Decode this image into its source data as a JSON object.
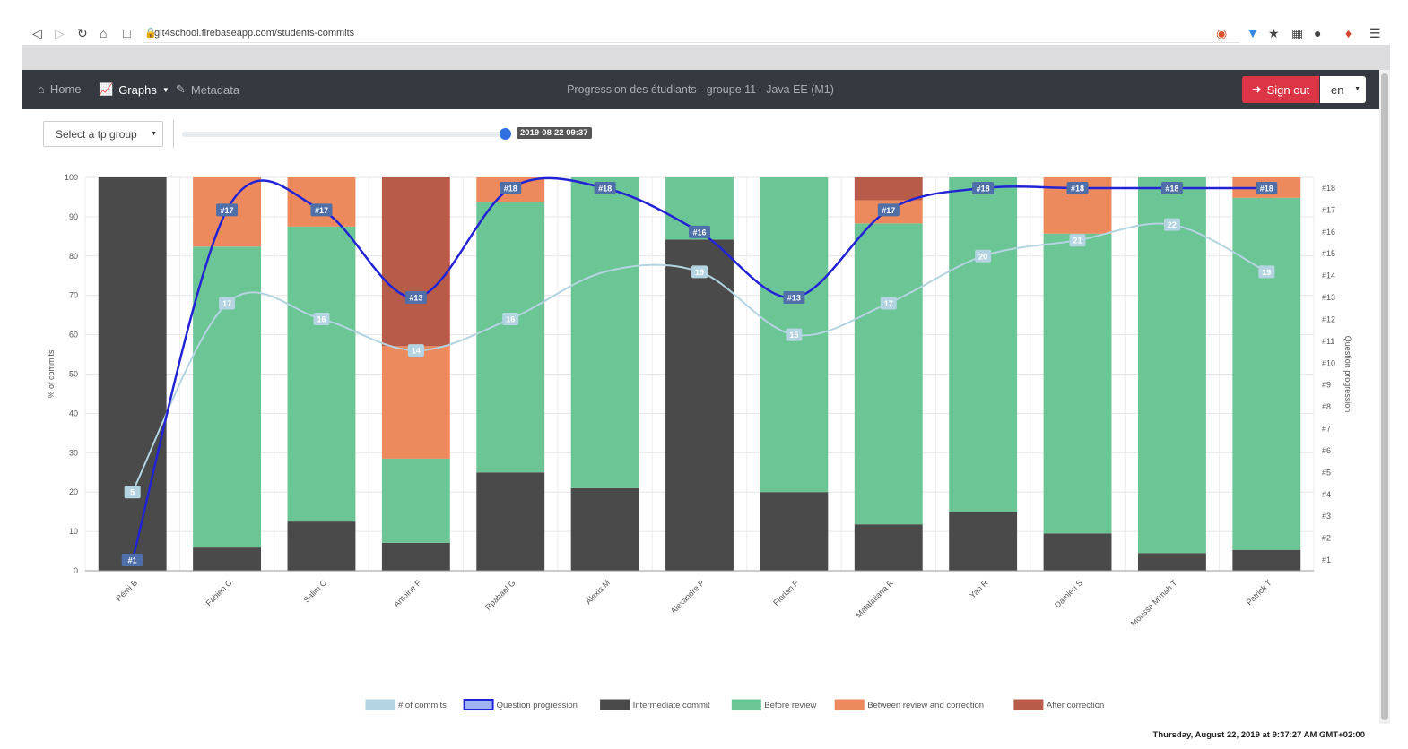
{
  "browser": {
    "url": "git4school.firebaseapp.com/students-commits",
    "icons": [
      "back-icon",
      "forward-icon",
      "reload-icon",
      "home-icon",
      "bookmark-icon",
      "brave-shield-icon",
      "filter-icon",
      "extension-icon",
      "extension-icon-2",
      "extension-icon-3",
      "extension-icon-4",
      "menu-icon"
    ]
  },
  "navbar": {
    "home_label": "Home",
    "graphs_label": "Graphs",
    "metadata_label": "Metadata",
    "title": "Progression des étudiants - groupe 11 - Java EE (M1)",
    "signout_label": "Sign out",
    "language": "en"
  },
  "controls": {
    "tp_group_placeholder": "Select a tp group",
    "slider_value": "2019-08-22 09:37",
    "slider_fraction": 1.0
  },
  "colors": {
    "navbar_bg": "#343a40",
    "signout": "#dc3545",
    "intermediate": "#4a4a4a",
    "before_review": "#6cc595",
    "between": "#ec8a5d",
    "after": "#b85c4a",
    "commits_line": "#b3d4e0",
    "progression_line": "#2323d6"
  },
  "footer": {
    "timestamp": "Thursday, August 22, 2019 at 9:37:27 AM GMT+02:00"
  },
  "chart_data": {
    "type": "bar",
    "stacked": true,
    "categories": [
      "Rémi B",
      "Fabien C",
      "Salim C",
      "Antoine F",
      "Rpahael G",
      "Alexis M",
      "Alexandre P",
      "Florian P",
      "Malalatiana R",
      "Yan R",
      "Damien S",
      "Moussa M'mah T",
      "Patrick T"
    ],
    "ylabel": "% of commits",
    "y2label": "Question progression",
    "ylim": [
      0,
      100
    ],
    "yticks": [
      0,
      10,
      20,
      30,
      40,
      50,
      60,
      70,
      80,
      90,
      100
    ],
    "y2ticks": [
      "#1",
      "#2",
      "#3",
      "#4",
      "#5",
      "#6",
      "#7",
      "#8",
      "#9",
      "#10",
      "#11",
      "#12",
      "#13",
      "#14",
      "#15",
      "#16",
      "#17",
      "#18"
    ],
    "series": [
      {
        "name": "Intermediate commit",
        "values": [
          100,
          5.9,
          12.5,
          7.1,
          25,
          21,
          84.2,
          20,
          11.8,
          15,
          9.5,
          4.5,
          5.3
        ]
      },
      {
        "name": "Before review",
        "values": [
          0,
          76.5,
          75,
          21.4,
          68.8,
          79,
          15.8,
          80,
          76.5,
          85,
          76.2,
          95.5,
          89.5
        ]
      },
      {
        "name": "Between review and correction",
        "values": [
          0,
          17.6,
          12.5,
          28.6,
          6.2,
          0,
          0,
          0,
          5.9,
          0,
          14.3,
          0,
          5.2
        ]
      },
      {
        "name": "After correction",
        "values": [
          0,
          0,
          0,
          42.9,
          0,
          0,
          0,
          0,
          5.8,
          0,
          0,
          0,
          0
        ]
      }
    ],
    "lines": [
      {
        "name": "# of commits",
        "values": [
          5,
          17,
          16,
          14,
          16,
          19,
          19,
          15,
          17,
          20,
          21,
          22,
          19
        ],
        "labels": [
          "5",
          "17",
          "16",
          "14",
          "16",
          "",
          "19",
          "15",
          "17",
          "20",
          "21",
          "22",
          "19"
        ]
      },
      {
        "name": "Question progression",
        "values": [
          1,
          17,
          17,
          13,
          18,
          18,
          16,
          13,
          17,
          18,
          18,
          18,
          18
        ],
        "labels": [
          "#1",
          "#17",
          "#17",
          "#13",
          "#18",
          "#18",
          "#16",
          "#13",
          "#17",
          "#18",
          "#18",
          "#18",
          "#18"
        ]
      }
    ],
    "legend": [
      "# of commits",
      "Question progression",
      "Intermediate commit",
      "Before review",
      "Between review and correction",
      "After correction"
    ],
    "legend_position": "bottom"
  }
}
